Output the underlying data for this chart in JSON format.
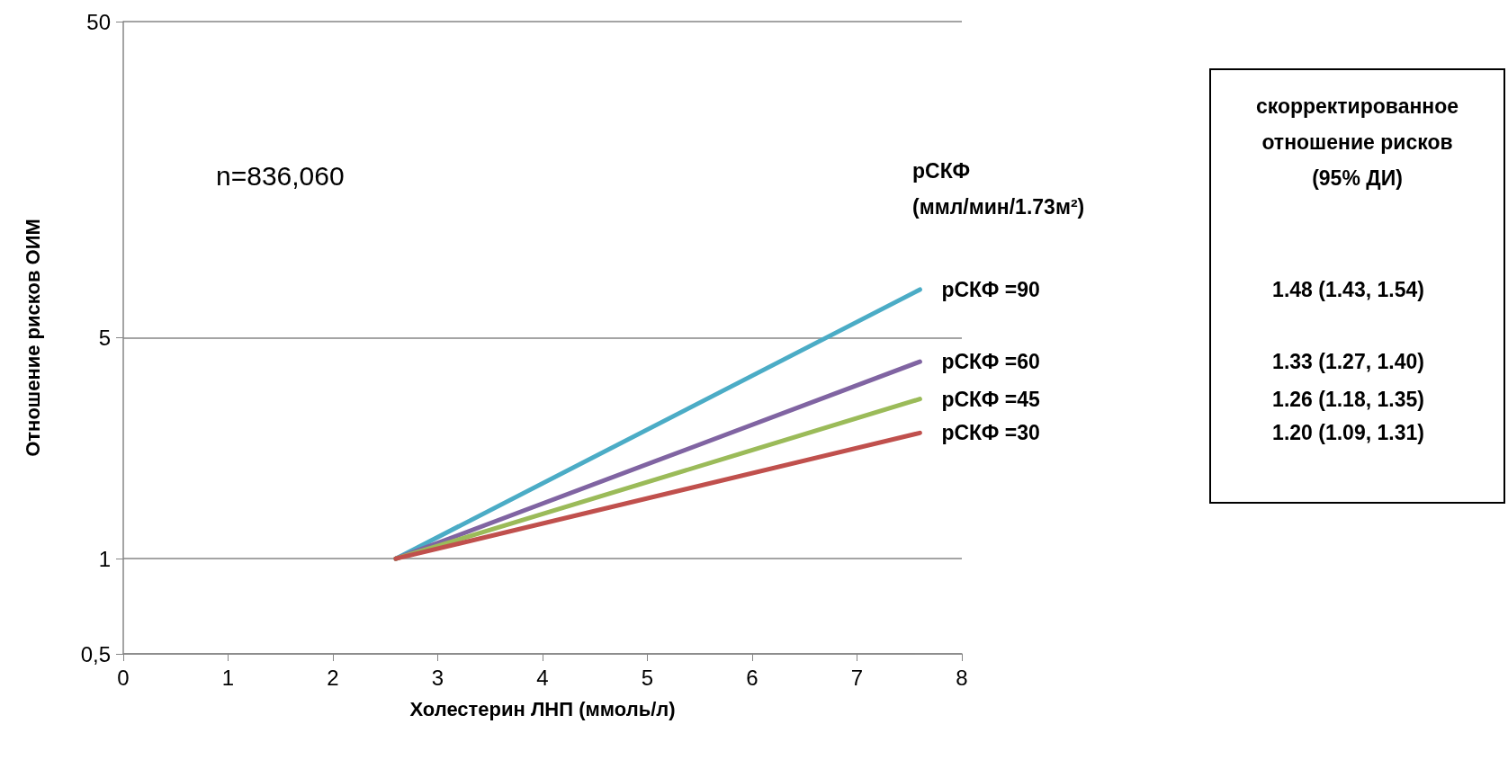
{
  "chart_data": {
    "type": "line",
    "xlabel": "Холестерин ЛНП (ммоль/л)",
    "ylabel": "Отношение рисков ОИМ",
    "legend_title": "рСКФ\n(ммл/мин/1.73м²)",
    "x": [
      2.6,
      7.6
    ],
    "series": [
      {
        "name": "рСКФ =90",
        "color": "#4bacc6",
        "values": [
          1,
          7.1
        ]
      },
      {
        "name": "рСКФ =60",
        "color": "#8064a2",
        "values": [
          1,
          4.2
        ]
      },
      {
        "name": "рСКФ =45",
        "color": "#9bbb59",
        "values": [
          1,
          3.2
        ]
      },
      {
        "name": "рСКФ =30",
        "color": "#c0504d",
        "values": [
          1,
          2.5
        ]
      }
    ],
    "annotations": [
      "n=836,060",
      "скорректированное\nотношение рисков\n(95% ДИ)",
      "1.48 (1.43, 1.54)",
      "1.33 (1.27, 1.40)",
      "1.26 (1.18, 1.35)",
      "1.20 (1.09, 1.31)"
    ],
    "xlim": [
      0,
      8
    ],
    "xticks": [
      0,
      1,
      2,
      3,
      4,
      5,
      6,
      7,
      8
    ],
    "ylim": [
      0.5,
      50
    ],
    "yticks": [
      {
        "value": 0.5,
        "label": "0,5"
      },
      1,
      5,
      50
    ],
    "log": "y",
    "grid": "y",
    "legend": false,
    "marker": "none",
    "line_style": "solid"
  }
}
